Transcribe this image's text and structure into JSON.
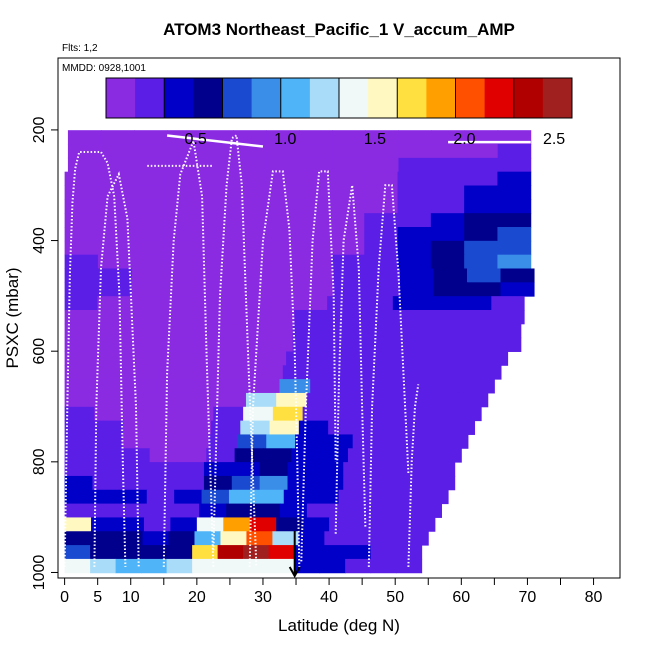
{
  "chart_data": {
    "type": "heatmap",
    "title": "ATOM3 Northeast_Pacific_1 V_accum_AMP",
    "flights_label": "Flts: 1,2",
    "date_label": "MMDD: 0928,1001",
    "xlabel": "Latitude (deg N)",
    "ylabel": "PSXC (mbar)",
    "xlim": [
      -1,
      84
    ],
    "ylim": [
      1010,
      70
    ],
    "xticks": [
      0,
      5,
      10,
      20,
      30,
      40,
      50,
      60,
      70,
      80
    ],
    "xminor_ticks": [
      15,
      25,
      35,
      45,
      55,
      65,
      75
    ],
    "yticks": [
      200,
      400,
      600,
      800,
      1000
    ],
    "colorbar": {
      "range": [
        0,
        2.6
      ],
      "ticks": [
        0.5,
        1.0,
        1.5,
        2.0,
        2.5
      ],
      "tick_labels": [
        "0.5",
        "1.0",
        "1.5",
        "2.0",
        "2.5"
      ],
      "colors": [
        "#8a2be2",
        "#5a1ee6",
        "#0000c8",
        "#00008c",
        "#1a4ad0",
        "#3a8ee8",
        "#50b4f8",
        "#a8dcf8",
        "#f0f8f8",
        "#fff8c0",
        "#ffe040",
        "#ffa000",
        "#ff5000",
        "#e00000",
        "#b00000",
        "#a02020"
      ]
    },
    "rows": [
      {
        "p": 213,
        "lat0": 0.5,
        "lat1": 70.5,
        "values": [
          0.05,
          0.05,
          0.05,
          0.05,
          0.05,
          0.05,
          0.05,
          0.05,
          0.08,
          0.1,
          0.1,
          0.1,
          0.1,
          0.1
        ]
      },
      {
        "p": 238,
        "lat0": 0.5,
        "lat1": 70.5,
        "values": [
          0.05,
          0.05,
          0.05,
          0.05,
          0.05,
          0.05,
          0.05,
          0.05,
          0.08,
          0.1,
          0.15,
          0.15,
          0.15,
          0.2
        ]
      },
      {
        "p": 263,
        "lat0": 0.5,
        "lat1": 70.5,
        "values": [
          0.05,
          0.05,
          0.05,
          0.05,
          0.05,
          0.05,
          0.05,
          0.05,
          0.1,
          0.15,
          0.2,
          0.2,
          0.25,
          0.3
        ]
      },
      {
        "p": 288,
        "lat0": 0,
        "lat1": 70.5,
        "values": [
          0.05,
          0.05,
          0.05,
          0.05,
          0.05,
          0.05,
          0.05,
          0.08,
          0.1,
          0.15,
          0.2,
          0.25,
          0.3,
          0.35
        ]
      },
      {
        "p": 313,
        "lat0": 0,
        "lat1": 70.5,
        "values": [
          0.05,
          0.05,
          0.05,
          0.05,
          0.05,
          0.05,
          0.05,
          0.08,
          0.1,
          0.15,
          0.2,
          0.3,
          0.35,
          0.4
        ]
      },
      {
        "p": 338,
        "lat0": 0,
        "lat1": 70.5,
        "values": [
          0.05,
          0.05,
          0.05,
          0.05,
          0.05,
          0.05,
          0.05,
          0.08,
          0.1,
          0.15,
          0.25,
          0.3,
          0.4,
          0.45
        ]
      },
      {
        "p": 363,
        "lat0": 0,
        "lat1": 70.5,
        "values": [
          0.05,
          0.05,
          0.05,
          0.05,
          0.05,
          0.05,
          0.05,
          0.1,
          0.15,
          0.2,
          0.3,
          0.4,
          0.5,
          0.6
        ]
      },
      {
        "p": 388,
        "lat0": 0,
        "lat1": 70.5,
        "values": [
          0.1,
          0.1,
          0.05,
          0.05,
          0.05,
          0.05,
          0.05,
          0.1,
          0.15,
          0.25,
          0.35,
          0.45,
          0.55,
          0.7
        ]
      },
      {
        "p": 413,
        "lat0": 0,
        "lat1": 70.5,
        "values": [
          0.1,
          0.1,
          0.05,
          0.05,
          0.05,
          0.05,
          0.05,
          0.1,
          0.15,
          0.25,
          0.4,
          0.5,
          0.65,
          0.8
        ]
      },
      {
        "p": 438,
        "lat0": 0,
        "lat1": 70.5,
        "values": [
          0.2,
          0.15,
          0.1,
          0.05,
          0.05,
          0.05,
          0.08,
          0.1,
          0.2,
          0.3,
          0.4,
          0.55,
          0.7,
          0.85
        ]
      },
      {
        "p": 463,
        "lat0": 0,
        "lat1": 71,
        "values": [
          0.25,
          0.2,
          0.1,
          0.05,
          0.05,
          0.05,
          0.08,
          0.15,
          0.25,
          0.3,
          0.45,
          0.6,
          0.7,
          0.5
        ]
      },
      {
        "p": 488,
        "lat0": 0,
        "lat1": 71,
        "values": [
          0.2,
          0.2,
          0.1,
          0.05,
          0.05,
          0.05,
          0.08,
          0.15,
          0.25,
          0.3,
          0.4,
          0.5,
          0.5,
          0.35
        ]
      },
      {
        "p": 513,
        "lat0": 0,
        "lat1": 69.5,
        "values": [
          0.2,
          0.15,
          0.1,
          0.05,
          0.05,
          0.05,
          0.1,
          0.15,
          0.25,
          0.3,
          0.35,
          0.4,
          0.35,
          0.3
        ]
      },
      {
        "p": 538,
        "lat0": 0,
        "lat1": 69.5,
        "values": [
          0.15,
          0.1,
          0.08,
          0.05,
          0.05,
          0.05,
          0.1,
          0.2,
          0.25,
          0.3,
          0.3,
          0.3,
          0.25,
          0.25
        ]
      },
      {
        "p": 563,
        "lat0": 0,
        "lat1": 69,
        "values": [
          0.1,
          0.1,
          0.08,
          0.05,
          0.05,
          0.05,
          0.1,
          0.2,
          0.25,
          0.25,
          0.25,
          0.2,
          0.2,
          0.2
        ]
      },
      {
        "p": 588,
        "lat0": 0,
        "lat1": 69,
        "values": [
          0.1,
          0.08,
          0.05,
          0.05,
          0.05,
          0.05,
          0.1,
          0.2,
          0.2,
          0.2,
          0.2,
          0.2,
          0.2,
          0.2
        ]
      },
      {
        "p": 613,
        "lat0": 0,
        "lat1": 67,
        "values": [
          0.1,
          0.08,
          0.05,
          0.05,
          0.05,
          0.05,
          0.1,
          0.25,
          0.2,
          0.2,
          0.2,
          0.2,
          0.2,
          0.2
        ]
      },
      {
        "p": 638,
        "lat0": 0,
        "lat1": 66,
        "values": [
          0.1,
          0.08,
          0.05,
          0.05,
          0.05,
          0.05,
          0.1,
          0.3,
          0.25,
          0.25,
          0.2,
          0.2,
          0.2,
          0.2
        ]
      },
      {
        "p": 663,
        "lat0": 0,
        "lat1": 65,
        "values": [
          0.1,
          0.08,
          0.05,
          0.05,
          0.05,
          0.08,
          0.15,
          0.9,
          0.3,
          0.3,
          0.25,
          0.25,
          0.2,
          0.2
        ]
      },
      {
        "p": 688,
        "lat0": 0,
        "lat1": 64,
        "values": [
          0.15,
          0.1,
          0.08,
          0.05,
          0.05,
          0.15,
          1.2,
          1.6,
          0.3,
          0.3,
          0.25,
          0.25,
          0.2,
          0.2
        ]
      },
      {
        "p": 713,
        "lat0": 0,
        "lat1": 63,
        "values": [
          0.2,
          0.15,
          0.1,
          0.05,
          0.05,
          0.2,
          1.3,
          1.7,
          0.3,
          0.3,
          0.3,
          0.25,
          0.25,
          0.25
        ]
      },
      {
        "p": 738,
        "lat0": 0,
        "lat1": 62,
        "values": [
          0.2,
          0.2,
          0.15,
          0.1,
          0.1,
          0.25,
          1.2,
          1.5,
          0.35,
          0.3,
          0.3,
          0.3,
          0.25,
          0.25
        ]
      },
      {
        "p": 763,
        "lat0": 0,
        "lat1": 61,
        "values": [
          0.25,
          0.2,
          0.15,
          0.1,
          0.1,
          0.3,
          0.8,
          1.0,
          0.4,
          0.35,
          0.3,
          0.3,
          0.3,
          0.3
        ]
      },
      {
        "p": 788,
        "lat0": 0,
        "lat1": 60,
        "values": [
          0.3,
          0.25,
          0.2,
          0.15,
          0.15,
          0.3,
          0.5,
          0.6,
          0.4,
          0.35,
          0.3,
          0.3,
          0.3,
          0.3
        ]
      },
      {
        "p": 813,
        "lat0": 0,
        "lat1": 59,
        "values": [
          0.3,
          0.3,
          0.25,
          0.2,
          0.2,
          0.35,
          0.45,
          0.5,
          0.4,
          0.35,
          0.3,
          0.3,
          0.3,
          0.3
        ]
      },
      {
        "p": 838,
        "lat0": 0,
        "lat1": 59,
        "values": [
          0.35,
          0.3,
          0.3,
          0.25,
          0.3,
          0.5,
          0.7,
          0.9,
          0.4,
          0.35,
          0.3,
          0.3,
          0.3,
          0.3
        ]
      },
      {
        "p": 863,
        "lat0": 0,
        "lat1": 58,
        "values": [
          0.4,
          0.35,
          0.35,
          0.3,
          0.4,
          0.7,
          1.0,
          1.1,
          0.45,
          0.35,
          0.3,
          0.3,
          0.3,
          0.3
        ]
      },
      {
        "p": 888,
        "lat0": 0,
        "lat1": 57,
        "values": [
          0.3,
          0.3,
          0.3,
          0.25,
          0.3,
          0.4,
          0.5,
          0.6,
          0.4,
          0.3,
          0.3,
          0.3,
          0.3,
          0.3
        ]
      },
      {
        "p": 913,
        "lat0": 0,
        "lat1": 56,
        "values": [
          1.6,
          0.4,
          0.35,
          0.3,
          0.4,
          1.3,
          1.9,
          2.2,
          0.6,
          0.35,
          0.3,
          0.3,
          0.3,
          0.3
        ]
      },
      {
        "p": 938,
        "lat0": 0,
        "lat1": 55,
        "values": [
          0.6,
          0.6,
          0.5,
          0.4,
          0.5,
          1.0,
          1.6,
          2.0,
          1.2,
          0.4,
          0.3,
          0.3,
          0.3,
          0.3
        ]
      },
      {
        "p": 963,
        "lat0": 0,
        "lat1": 54,
        "values": [
          0.8,
          0.6,
          0.5,
          0.5,
          0.6,
          1.7,
          2.3,
          2.5,
          2.2,
          0.45,
          0.4,
          0.35,
          0.3,
          0.3
        ]
      },
      {
        "p": 988,
        "lat0": 0,
        "lat1": 54,
        "values": [
          1.3,
          1.2,
          1.1,
          1.05,
          1.15,
          1.3,
          1.35,
          1.4,
          1.35,
          0.4,
          0.35,
          0.3,
          0.3,
          0.3
        ]
      }
    ],
    "flight_tracks": [
      [
        [
          0,
          990
        ],
        [
          0.4,
          700
        ],
        [
          0.8,
          460
        ],
        [
          1.2,
          330
        ],
        [
          1.6,
          270
        ],
        [
          2.2,
          240
        ],
        [
          5.5,
          240
        ],
        [
          6.5,
          260
        ],
        [
          7.5,
          320
        ],
        [
          8.3,
          500
        ],
        [
          8.8,
          800
        ],
        [
          9.2,
          990
        ]
      ],
      [
        [
          4.5,
          990
        ],
        [
          4.8,
          700
        ],
        [
          5.5,
          450
        ],
        [
          6.5,
          320
        ],
        [
          8.2,
          280
        ],
        [
          9.5,
          360
        ],
        [
          10.8,
          700
        ],
        [
          11.2,
          990
        ]
      ],
      [
        [
          15,
          990
        ],
        [
          15.5,
          640
        ],
        [
          16.5,
          400
        ],
        [
          17.5,
          280
        ],
        [
          19.5,
          220
        ],
        [
          20.8,
          320
        ],
        [
          21.5,
          620
        ],
        [
          22.5,
          990
        ]
      ],
      [
        [
          22.5,
          960
        ],
        [
          23.5,
          500
        ],
        [
          24.5,
          300
        ],
        [
          25.3,
          215
        ],
        [
          26,
          210
        ],
        [
          26.8,
          300
        ],
        [
          27.8,
          620
        ],
        [
          29,
          990
        ]
      ],
      [
        [
          12.5,
          265
        ],
        [
          22.5,
          265
        ]
      ],
      [
        [
          28,
          990
        ],
        [
          28.5,
          700
        ],
        [
          30,
          400
        ],
        [
          31.5,
          275
        ],
        [
          33,
          275
        ],
        [
          34,
          380
        ],
        [
          34.8,
          600
        ],
        [
          35.2,
          800
        ],
        [
          35.5,
          990
        ]
      ],
      [
        [
          35.8,
          980
        ],
        [
          36.5,
          700
        ],
        [
          37.5,
          400
        ],
        [
          38.5,
          275
        ],
        [
          39.8,
          275
        ],
        [
          40.7,
          500
        ],
        [
          41,
          800
        ]
      ],
      [
        [
          41,
          930
        ],
        [
          41.5,
          650
        ],
        [
          42.2,
          400
        ],
        [
          43.5,
          300
        ],
        [
          44.5,
          450
        ],
        [
          45,
          700
        ],
        [
          45.5,
          920
        ]
      ],
      [
        [
          46,
          990
        ],
        [
          46.5,
          700
        ],
        [
          47.5,
          450
        ],
        [
          48.5,
          300
        ],
        [
          49.5,
          300
        ],
        [
          50.5,
          460
        ],
        [
          51.5,
          700
        ],
        [
          52,
          820
        ]
      ],
      [
        [
          52,
          990
        ],
        [
          52.5,
          800
        ],
        [
          53,
          700
        ],
        [
          53.5,
          660
        ]
      ]
    ],
    "top_segments": [
      [
        15.5,
        210
      ],
      [
        30,
        230
      ],
      [
        58,
        222
      ],
      [
        70.5,
        222
      ]
    ],
    "arrow_lat": 34.8,
    "arrow_p_start": 925
  }
}
